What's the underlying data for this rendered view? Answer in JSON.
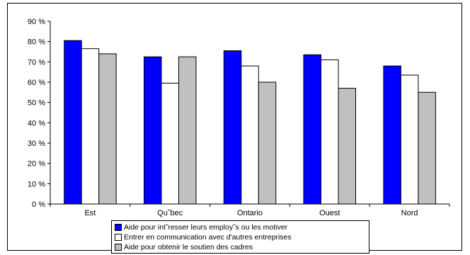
{
  "chart_data": {
    "type": "bar",
    "categories": [
      "Est",
      "Qu˜bec",
      "Ontario",
      "Ouest",
      "Nord"
    ],
    "series": [
      {
        "name": "Aide pour int˜resser leurs employ˜s ou les motiver",
        "color": "#0000ff",
        "values": [
          80.5,
          72.5,
          75.5,
          73.5,
          68
        ]
      },
      {
        "name": "Entrer en communication avec d'autres entreprises",
        "color": "#ffffff",
        "values": [
          76.5,
          59.5,
          68,
          71,
          63.5
        ]
      },
      {
        "name": "Aide pour obtenir le soutien des cadres",
        "color": "#c0c0c0",
        "values": [
          74,
          72.5,
          60,
          57,
          55
        ]
      }
    ],
    "y_ticks": [
      "0 %",
      "10 %",
      "20 %",
      "30 %",
      "40 %",
      "50 %",
      "60 %",
      "70 %",
      "80 %",
      "90 %"
    ],
    "ylim": [
      0,
      90
    ],
    "grid": false,
    "legend_position": "bottom"
  }
}
